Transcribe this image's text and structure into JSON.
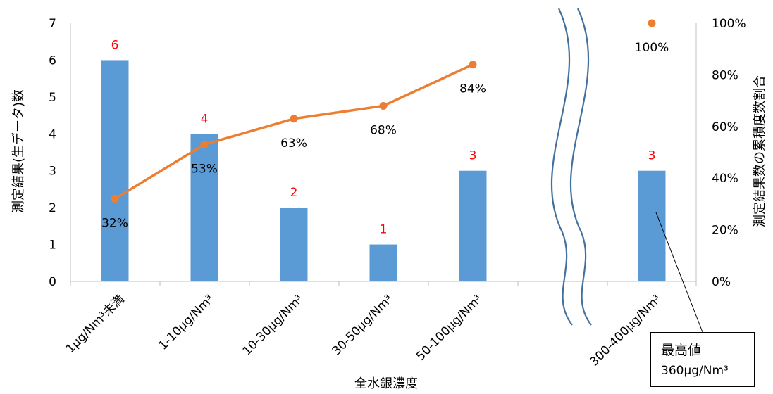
{
  "chart_data": {
    "type": "bar",
    "categories": [
      "1μg/Nm³未満",
      "1-10μg/Nm³",
      "10-30μg/Nm³",
      "30-50μg/Nm³",
      "50-100μg/Nm³",
      "300-400μg/Nm³"
    ],
    "series": [
      {
        "values": [
          6,
          4,
          2,
          1,
          3,
          3
        ],
        "color": "#5b9bd5",
        "data_labels": [
          "6",
          "4",
          "2",
          "1",
          "3",
          "3"
        ]
      },
      {
        "values": [
          32,
          53,
          63,
          68,
          84,
          100
        ],
        "color": "#ed7d31",
        "axis": "right",
        "chart_type": "line",
        "data_labels": [
          "32%",
          "53%",
          "63%",
          "68%",
          "84%",
          "100%"
        ]
      }
    ],
    "xlabel": "全水銀濃度",
    "ylabel": "測定結果(生データ)数",
    "y2label": "測定結果数の累積度数割合",
    "ylim": [
      0,
      7
    ],
    "y2lim": [
      0,
      100
    ],
    "yticks": [
      "0",
      "1",
      "2",
      "3",
      "4",
      "5",
      "6",
      "7"
    ],
    "y2ticks": [
      "0%",
      "20%",
      "40%",
      "60%",
      "80%",
      "100%"
    ],
    "axis_break": "between 50-100μg/Nm³ and 300-400μg/Nm³",
    "annotation": {
      "title": "最高値",
      "value": "360μg/Nm³"
    },
    "grid": false,
    "legend": "none"
  }
}
